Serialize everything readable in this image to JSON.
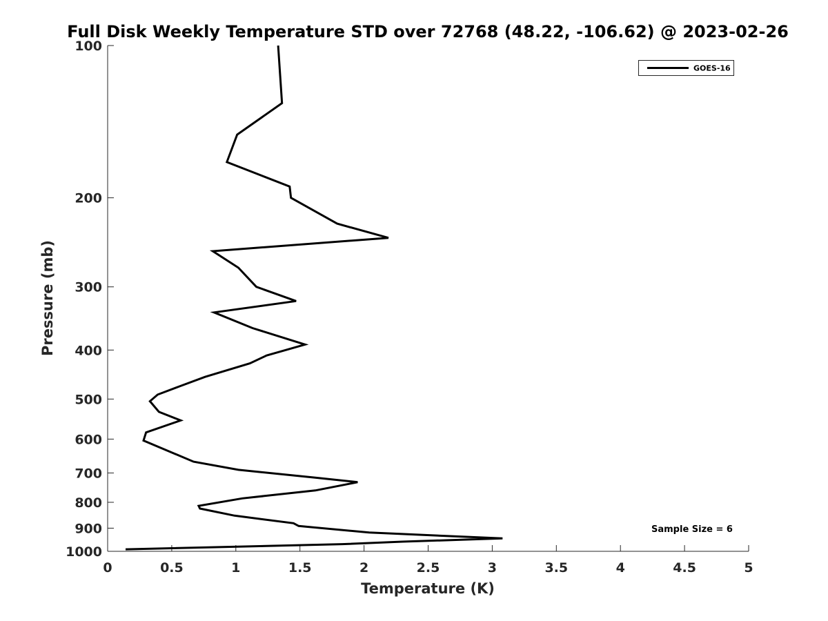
{
  "chart_data": {
    "type": "line",
    "title": "Full Disk Weekly Temperature STD over 72768 (48.22, -106.62) @ 2023-02-26",
    "xlabel": "Temperature (K)",
    "ylabel": "Pressure (mb)",
    "xlim": [
      0,
      5
    ],
    "ylim": [
      100,
      1000
    ],
    "yscale": "log",
    "y_reversed": true,
    "grid": false,
    "xticks": [
      0,
      0.5,
      1,
      1.5,
      2,
      2.5,
      3,
      3.5,
      4,
      4.5,
      5
    ],
    "xtick_labels": [
      "0",
      "0.5",
      "1",
      "1.5",
      "2",
      "2.5",
      "3",
      "3.5",
      "4",
      "4.5",
      "5"
    ],
    "yticks": [
      100,
      200,
      300,
      400,
      500,
      600,
      700,
      800,
      900,
      1000
    ],
    "ytick_labels": [
      "100",
      "200",
      "300",
      "400",
      "500",
      "600",
      "700",
      "800",
      "900",
      "1000"
    ],
    "legend": {
      "entries": [
        "GOES-16"
      ],
      "location": "top-right"
    },
    "annotations": [
      {
        "text": "Sample Size = 6",
        "location": "bottom-right"
      }
    ],
    "series": [
      {
        "name": "GOES-16",
        "color": "#000000",
        "x": [
          1.33,
          1.36,
          1.01,
          0.93,
          1.42,
          1.43,
          1.79,
          2.19,
          0.82,
          1.02,
          1.16,
          1.47,
          0.83,
          1.13,
          1.54,
          1.24,
          1.11,
          0.76,
          0.56,
          0.39,
          0.33,
          0.4,
          0.57,
          0.3,
          0.28,
          0.67,
          1.02,
          1.62,
          1.95,
          1.62,
          1.05,
          0.71,
          0.72,
          0.99,
          1.45,
          1.49,
          2.04,
          3.08,
          2.3,
          1.83,
          0.14
        ],
        "y": [
          100,
          130,
          150,
          170,
          190,
          200,
          225,
          240,
          255,
          275,
          300,
          320,
          337,
          362,
          390,
          410,
          425,
          452,
          472,
          490,
          505,
          530,
          551,
          582,
          604,
          665,
          690,
          715,
          730,
          758,
          786,
          813,
          823,
          850,
          880,
          891,
          918,
          943,
          957,
          968,
          991
        ]
      }
    ]
  }
}
